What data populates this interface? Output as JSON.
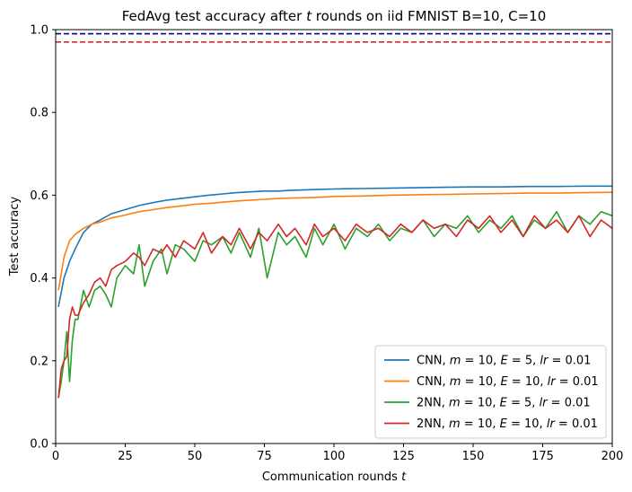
{
  "chart_data": {
    "type": "line",
    "title": "FedAvg test accuracy after t rounds on iid FMNIST B=10, C=10",
    "xlabel": "Communication rounds t",
    "ylabel": "Test accuracy",
    "xlim": [
      0,
      200
    ],
    "ylim": [
      0.0,
      1.0
    ],
    "xticks": [
      "0",
      "25",
      "50",
      "75",
      "100",
      "125",
      "150",
      "175",
      "200"
    ],
    "yticks": [
      "0.0",
      "0.2",
      "0.4",
      "0.6",
      "0.8",
      "1.0"
    ],
    "grid": false,
    "legend_position": "lower-right",
    "reference_lines": [
      {
        "y": 0.99,
        "color": "#00008b",
        "style": "dashed"
      },
      {
        "y": 0.97,
        "color": "#d62728",
        "style": "dashed"
      }
    ],
    "series": [
      {
        "name": "CNN, m = 10, E = 5, lr = 0.01",
        "color": "#1f77b4",
        "x": [
          1,
          3,
          5,
          7,
          10,
          13,
          16,
          20,
          25,
          30,
          35,
          40,
          45,
          50,
          55,
          60,
          65,
          70,
          75,
          80,
          85,
          90,
          95,
          100,
          110,
          120,
          130,
          140,
          150,
          160,
          170,
          180,
          190,
          200
        ],
        "y": [
          0.33,
          0.4,
          0.44,
          0.47,
          0.51,
          0.53,
          0.54,
          0.555,
          0.565,
          0.575,
          0.582,
          0.588,
          0.592,
          0.596,
          0.6,
          0.603,
          0.606,
          0.608,
          0.61,
          0.61,
          0.612,
          0.613,
          0.614,
          0.615,
          0.616,
          0.617,
          0.618,
          0.619,
          0.62,
          0.62,
          0.621,
          0.621,
          0.622,
          0.622
        ]
      },
      {
        "name": "CNN, m = 10, E = 10, lr = 0.01",
        "color": "#ff7f0e",
        "x": [
          1,
          3,
          5,
          7,
          10,
          13,
          16,
          20,
          25,
          30,
          35,
          40,
          45,
          50,
          55,
          60,
          65,
          70,
          75,
          80,
          85,
          90,
          95,
          100,
          110,
          120,
          130,
          140,
          150,
          160,
          170,
          180,
          190,
          200
        ],
        "y": [
          0.37,
          0.45,
          0.49,
          0.505,
          0.52,
          0.53,
          0.535,
          0.545,
          0.552,
          0.56,
          0.565,
          0.57,
          0.574,
          0.578,
          0.58,
          0.583,
          0.586,
          0.588,
          0.59,
          0.592,
          0.593,
          0.594,
          0.595,
          0.597,
          0.598,
          0.6,
          0.601,
          0.602,
          0.603,
          0.604,
          0.605,
          0.605,
          0.606,
          0.607
        ]
      },
      {
        "name": "2NN, m = 10, E = 5, lr = 0.01",
        "color": "#2ca02c",
        "x": [
          1,
          2,
          3,
          4,
          5,
          6,
          7,
          8,
          10,
          12,
          14,
          16,
          18,
          20,
          22,
          25,
          28,
          30,
          32,
          35,
          38,
          40,
          43,
          46,
          50,
          53,
          56,
          60,
          63,
          66,
          70,
          73,
          76,
          80,
          83,
          86,
          90,
          93,
          96,
          100,
          104,
          108,
          112,
          116,
          120,
          124,
          128,
          132,
          136,
          140,
          144,
          148,
          152,
          156,
          160,
          164,
          168,
          172,
          176,
          180,
          184,
          188,
          192,
          196,
          200
        ],
        "y": [
          0.11,
          0.15,
          0.2,
          0.27,
          0.15,
          0.25,
          0.3,
          0.3,
          0.37,
          0.33,
          0.37,
          0.38,
          0.36,
          0.33,
          0.4,
          0.43,
          0.41,
          0.48,
          0.38,
          0.44,
          0.47,
          0.41,
          0.48,
          0.47,
          0.44,
          0.49,
          0.48,
          0.5,
          0.46,
          0.51,
          0.45,
          0.52,
          0.4,
          0.51,
          0.48,
          0.5,
          0.45,
          0.52,
          0.48,
          0.53,
          0.47,
          0.52,
          0.5,
          0.53,
          0.49,
          0.52,
          0.51,
          0.54,
          0.5,
          0.53,
          0.52,
          0.55,
          0.51,
          0.54,
          0.52,
          0.55,
          0.5,
          0.54,
          0.52,
          0.56,
          0.51,
          0.55,
          0.53,
          0.56,
          0.55
        ]
      },
      {
        "name": "2NN, m = 10, E = 10, lr = 0.01",
        "color": "#d62728",
        "x": [
          1,
          2,
          3,
          4,
          5,
          6,
          7,
          8,
          10,
          12,
          14,
          16,
          18,
          20,
          22,
          25,
          28,
          30,
          32,
          35,
          38,
          40,
          43,
          46,
          50,
          53,
          56,
          60,
          63,
          66,
          70,
          73,
          76,
          80,
          83,
          86,
          90,
          93,
          96,
          100,
          104,
          108,
          112,
          116,
          120,
          124,
          128,
          132,
          136,
          140,
          144,
          148,
          152,
          156,
          160,
          164,
          168,
          172,
          176,
          180,
          184,
          188,
          192,
          196,
          200
        ],
        "y": [
          0.11,
          0.18,
          0.2,
          0.21,
          0.3,
          0.33,
          0.31,
          0.31,
          0.34,
          0.36,
          0.39,
          0.4,
          0.38,
          0.42,
          0.43,
          0.44,
          0.46,
          0.45,
          0.43,
          0.47,
          0.46,
          0.48,
          0.45,
          0.49,
          0.47,
          0.51,
          0.46,
          0.5,
          0.48,
          0.52,
          0.47,
          0.51,
          0.49,
          0.53,
          0.5,
          0.52,
          0.48,
          0.53,
          0.5,
          0.52,
          0.49,
          0.53,
          0.51,
          0.52,
          0.5,
          0.53,
          0.51,
          0.54,
          0.52,
          0.53,
          0.5,
          0.54,
          0.52,
          0.55,
          0.51,
          0.54,
          0.5,
          0.55,
          0.52,
          0.54,
          0.51,
          0.55,
          0.5,
          0.54,
          0.52
        ]
      }
    ],
    "legend_entries": [
      {
        "prefix": "CNN, ",
        "m": "10",
        "E": "5",
        "lr": "0.01"
      },
      {
        "prefix": "CNN, ",
        "m": "10",
        "E": "10",
        "lr": "0.01"
      },
      {
        "prefix": "2NN, ",
        "m": "10",
        "E": "5",
        "lr": "0.01"
      },
      {
        "prefix": "2NN, ",
        "m": "10",
        "E": "10",
        "lr": "0.01"
      }
    ],
    "title_parts": {
      "before": "FedAvg test accuracy after ",
      "var": "t",
      "after": " rounds on iid FMNIST B=10, C=10"
    },
    "xlabel_parts": {
      "before": "Communication rounds ",
      "var": "t"
    }
  }
}
